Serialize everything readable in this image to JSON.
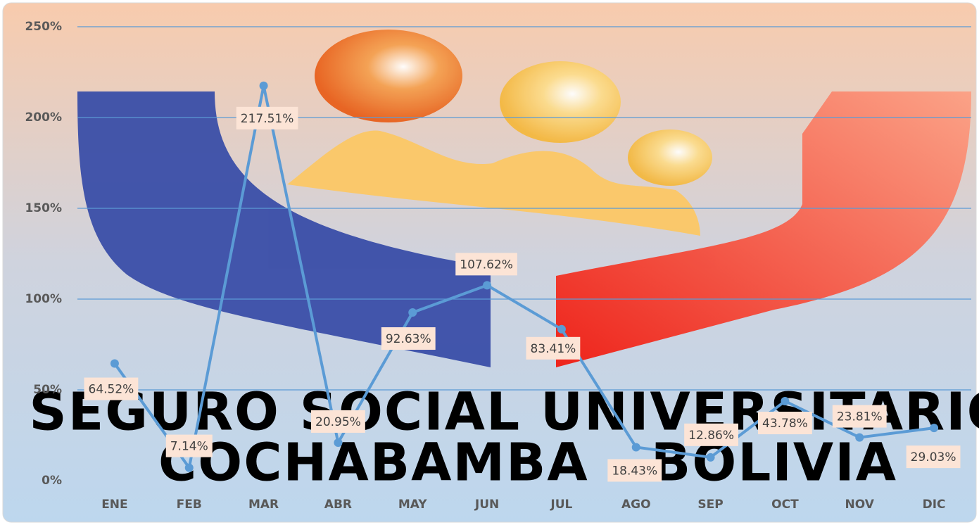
{
  "chart_data": {
    "type": "line",
    "categories": [
      "ENE",
      "FEB",
      "MAR",
      "ABR",
      "MAY",
      "JUN",
      "JUL",
      "AGO",
      "SEP",
      "OCT",
      "NOV",
      "DIC"
    ],
    "series": [
      {
        "color": "#5b9bd5",
        "values": [
          64.52,
          7.14,
          217.51,
          20.95,
          92.63,
          107.62,
          83.41,
          18.43,
          12.86,
          43.78,
          23.81,
          29.03
        ],
        "value_labels": [
          "64.52%",
          "7.14%",
          "217.51%",
          "20.95%",
          "92.63%",
          "107.62%",
          "83.41%",
          "18.43%",
          "12.86%",
          "43.78%",
          "23.81%",
          "29.03%"
        ]
      }
    ],
    "ylim": [
      0,
      250
    ],
    "yticks": [
      {
        "value": 0,
        "label": "0%"
      },
      {
        "value": 50,
        "label": "50%"
      },
      {
        "value": 100,
        "label": "100%"
      },
      {
        "value": 150,
        "label": "150%"
      },
      {
        "value": 200,
        "label": "200%"
      },
      {
        "value": 250,
        "label": "250%"
      }
    ],
    "grid": true,
    "annotations": [
      "SEGURO SOCIAL UNIVERSITARIO",
      "COCHABAMBA - BOLIVIA"
    ]
  }
}
